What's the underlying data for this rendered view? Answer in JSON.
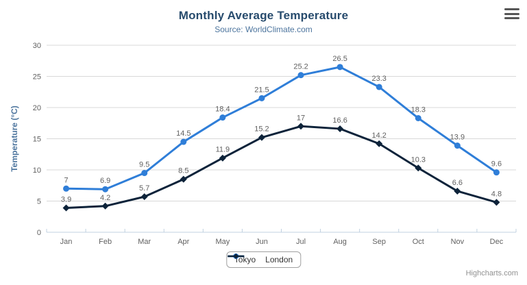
{
  "header": {
    "title": "Monthly Average Temperature",
    "subtitle": "Source: WorldClimate.com"
  },
  "credits_label": "Highcharts.com",
  "icons": {
    "export_menu": "hamburger-menu-icon"
  },
  "chart_data": {
    "type": "line",
    "title": "Monthly Average Temperature",
    "subtitle": "Source: WorldClimate.com",
    "categories": [
      "Jan",
      "Feb",
      "Mar",
      "Apr",
      "May",
      "Jun",
      "Jul",
      "Aug",
      "Sep",
      "Oct",
      "Nov",
      "Dec"
    ],
    "series": [
      {
        "name": "Tokyo",
        "color": "#2f7ed8",
        "marker": "circle",
        "values": [
          7,
          6.9,
          9.5,
          14.5,
          18.4,
          21.5,
          25.2,
          26.5,
          23.3,
          18.3,
          13.9,
          9.6
        ]
      },
      {
        "name": "London",
        "color": "#0d233a",
        "marker": "diamond",
        "values": [
          3.9,
          4.2,
          5.7,
          8.5,
          11.9,
          15.2,
          17,
          16.6,
          14.2,
          10.3,
          6.6,
          4.8
        ]
      }
    ],
    "xlabel": "",
    "ylabel": "Temperature (°C)",
    "ylim": [
      0,
      30
    ],
    "y_ticks": [
      0,
      5,
      10,
      15,
      20,
      25,
      30
    ],
    "grid": true,
    "data_labels": true,
    "legend_position": "bottom",
    "colors": {
      "title": "#274b6d",
      "subtitle": "#4d759e",
      "y_axis_title": "#4d759e",
      "axis_label": "#606060",
      "data_label": "#606060",
      "gridline": "#d8d8d8",
      "axis_line": "#c0d0e0",
      "legend_border": "#a0a0a0",
      "legend_text": "#333333",
      "credits": "#909090"
    }
  }
}
